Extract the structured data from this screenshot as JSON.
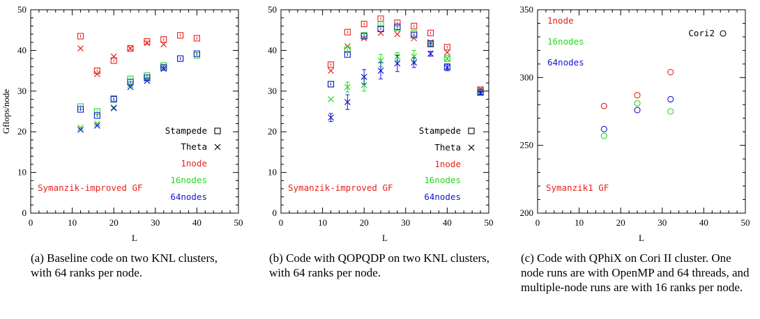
{
  "colors": {
    "one_node": "#e8201c",
    "sixteen_nodes": "#22d81a",
    "sixtyfour_nodes": "#1414d8",
    "stampede": "#000000",
    "theta": "#000000"
  },
  "chart_data": [
    {
      "type": "scatter",
      "panel": "a",
      "caption": "(a)  Baseline code on two KNL clusters, with 64 ranks per node.",
      "xlabel": "L",
      "ylabel": "Gflops/node",
      "xlim": [
        0,
        50
      ],
      "ylim": [
        0,
        50
      ],
      "xticks": [
        "0",
        "10",
        "20",
        "30",
        "40",
        "50"
      ],
      "yticks": [
        "0",
        "10",
        "20",
        "30",
        "40",
        "50"
      ],
      "legend": [
        {
          "label": "Stampede",
          "marker": "square",
          "color": "#000000"
        },
        {
          "label": "Theta",
          "marker": "cross",
          "color": "#000000"
        },
        {
          "label": "1node",
          "color": "#e8201c"
        },
        {
          "label": "16nodes",
          "color": "#22d81a"
        },
        {
          "label": "64nodes",
          "color": "#1414d8"
        }
      ],
      "annotation": "Symanzik-improved GF",
      "series": [
        {
          "name": "Stampede 1node",
          "marker": "square",
          "color": "#e8201c",
          "x": [
            12,
            16,
            20,
            24,
            28,
            32,
            36,
            40
          ],
          "y": [
            43.5,
            35,
            37.5,
            40.5,
            42.2,
            42.7,
            43.7,
            43
          ]
        },
        {
          "name": "Theta 1node",
          "marker": "cross",
          "color": "#e8201c",
          "x": [
            12,
            16,
            20,
            24,
            28,
            32,
            36,
            40
          ],
          "y": [
            40.5,
            34.2,
            38.5,
            40.5,
            41.8,
            41.5,
            null,
            null
          ]
        },
        {
          "name": "Stampede 16nodes",
          "marker": "square",
          "color": "#22d81a",
          "x": [
            12,
            16,
            20,
            24,
            28,
            32,
            36,
            40
          ],
          "y": [
            26.2,
            25,
            28.2,
            33,
            33.8,
            36.3,
            38,
            38.8
          ]
        },
        {
          "name": "Theta 16nodes",
          "marker": "cross",
          "color": "#22d81a",
          "x": [
            12,
            16,
            20,
            24,
            28,
            32,
            36,
            40
          ],
          "y": [
            21,
            22,
            26,
            31.5,
            33,
            36,
            null,
            null
          ]
        },
        {
          "name": "Stampede 64nodes",
          "marker": "square",
          "color": "#1414d8",
          "x": [
            12,
            16,
            20,
            24,
            28,
            32,
            36,
            40
          ],
          "y": [
            25.5,
            24,
            28,
            32.2,
            33.3,
            35.8,
            38,
            39.2
          ]
        },
        {
          "name": "Theta 64nodes",
          "marker": "cross",
          "color": "#1414d8",
          "x": [
            12,
            16,
            20,
            24,
            28,
            32,
            36,
            40
          ],
          "y": [
            20.5,
            21.5,
            25.8,
            31,
            32.5,
            35.5,
            null,
            null
          ]
        }
      ]
    },
    {
      "type": "scatter",
      "panel": "b",
      "caption": "(b)  Code with QOPQDP on two KNL clusters, with 64 ranks per node.",
      "xlabel": "L",
      "xlim": [
        0,
        50
      ],
      "ylim": [
        0,
        50
      ],
      "xticks": [
        "0",
        "10",
        "20",
        "30",
        "40",
        "50"
      ],
      "yticks": [
        "0",
        "10",
        "20",
        "30",
        "40",
        "50"
      ],
      "legend": [
        {
          "label": "Stampede",
          "marker": "square",
          "color": "#000000"
        },
        {
          "label": "Theta",
          "marker": "cross",
          "color": "#000000"
        },
        {
          "label": "1node",
          "color": "#e8201c"
        },
        {
          "label": "16nodes",
          "color": "#22d81a"
        },
        {
          "label": "64nodes",
          "color": "#1414d8"
        }
      ],
      "annotation": "Symanzik-improved GF",
      "series": [
        {
          "name": "Stampede 1node",
          "marker": "square",
          "color": "#e8201c",
          "x": [
            12,
            16,
            20,
            24,
            28,
            32,
            36,
            40,
            48
          ],
          "y": [
            36.5,
            44.5,
            46.5,
            47.8,
            46.8,
            46,
            44.3,
            40.8,
            30.3
          ]
        },
        {
          "name": "Theta 1node",
          "marker": "cross",
          "color": "#e8201c",
          "x": [
            12,
            16,
            20,
            24,
            28,
            32,
            36,
            40,
            48
          ],
          "y": [
            35,
            41,
            43,
            44.3,
            44,
            43,
            42,
            39.5,
            30.5
          ]
        },
        {
          "name": "Stampede 16nodes",
          "marker": "square",
          "color": "#22d81a",
          "x": [
            12,
            16,
            20,
            24,
            28,
            32,
            36,
            40,
            48
          ],
          "y": [
            31.7,
            40.2,
            43.7,
            46.5,
            45.5,
            44.2,
            41.5,
            38,
            29.8
          ]
        },
        {
          "name": "Theta 16nodes",
          "marker": "cross",
          "color": "#22d81a",
          "x": [
            12,
            16,
            20,
            24,
            28,
            32,
            36,
            40,
            48
          ],
          "y": [
            28,
            31,
            31.5,
            37.5,
            38.5,
            38.5,
            41.5,
            38,
            30
          ],
          "err": [
            0,
            1.2,
            1.5,
            1.5,
            1,
            1.5,
            0,
            0,
            0
          ]
        },
        {
          "name": "Stampede 64nodes",
          "marker": "square",
          "color": "#1414d8",
          "x": [
            12,
            16,
            20,
            24,
            28,
            32,
            36,
            40,
            48
          ],
          "y": [
            31.7,
            39,
            43.5,
            45.3,
            45.8,
            43.8,
            41.7,
            36,
            29.8
          ]
        },
        {
          "name": "Theta 64nodes",
          "marker": "cross",
          "color": "#1414d8",
          "x": [
            12,
            16,
            20,
            24,
            28,
            32,
            36,
            40,
            48
          ],
          "y": [
            23.5,
            27.3,
            33.5,
            35,
            36.8,
            37,
            39.2,
            35.8,
            29.5
          ],
          "err": [
            1,
            1.8,
            1.8,
            2,
            2,
            1.2,
            0.6,
            0.8,
            0.5
          ]
        }
      ]
    },
    {
      "type": "scatter",
      "panel": "c",
      "caption": "(c)  Code with QPhiX on Cori II cluster. One node runs are with OpenMP and 64 threads, and multiple-node runs are with 16 ranks per node.",
      "xlabel": "L",
      "xlim": [
        0,
        50
      ],
      "ylim": [
        200,
        350
      ],
      "xticks": [
        "0",
        "10",
        "20",
        "30",
        "40",
        "50"
      ],
      "yticks": [
        "200",
        "250",
        "300",
        "350"
      ],
      "legend": [
        {
          "label": "1node",
          "color": "#e8201c"
        },
        {
          "label": "16nodes",
          "color": "#22d81a"
        },
        {
          "label": "64nodes",
          "color": "#1414d8"
        },
        {
          "label": "Cori2",
          "marker": "circle",
          "color": "#000000"
        }
      ],
      "annotation": "Symanzik1 GF",
      "series": [
        {
          "name": "Cori2 1node",
          "marker": "circle",
          "color": "#e8201c",
          "x": [
            16,
            24,
            32
          ],
          "y": [
            279,
            287,
            304
          ]
        },
        {
          "name": "Cori2 16nodes",
          "marker": "circle",
          "color": "#22d81a",
          "x": [
            16,
            24,
            32
          ],
          "y": [
            257,
            281,
            275
          ]
        },
        {
          "name": "Cori2 64nodes",
          "marker": "circle",
          "color": "#1414d8",
          "x": [
            16,
            24,
            32
          ],
          "y": [
            262,
            276,
            284
          ]
        }
      ]
    }
  ]
}
